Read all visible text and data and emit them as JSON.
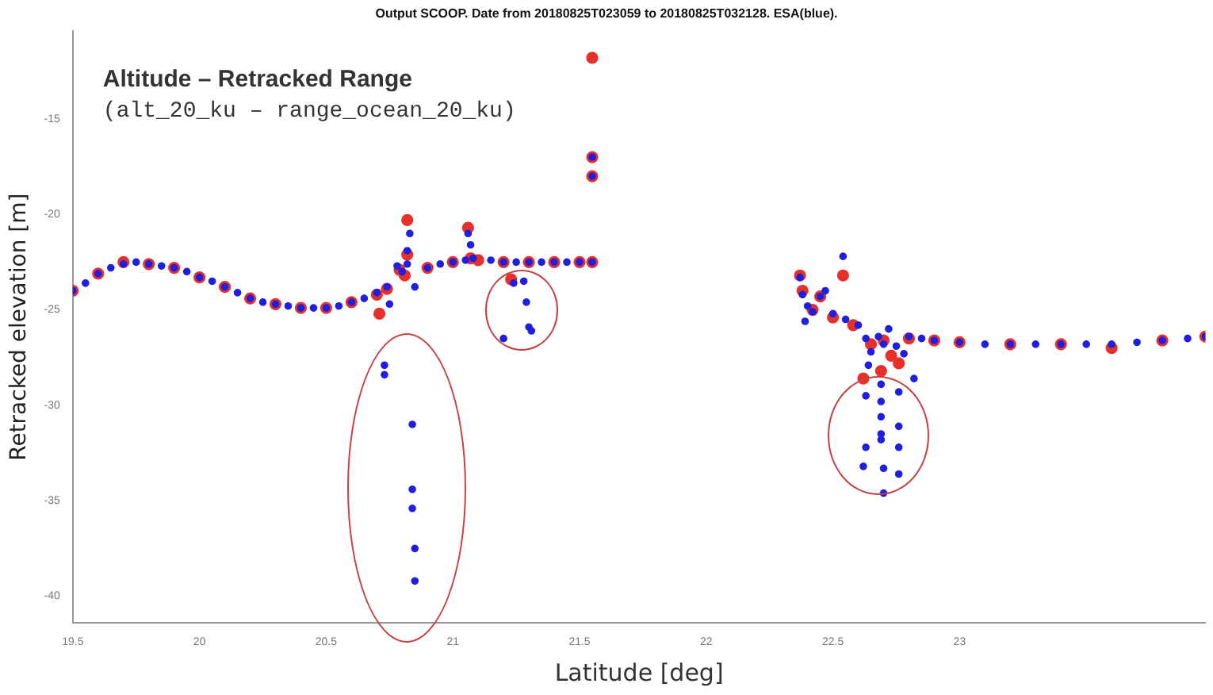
{
  "chart_data": {
    "type": "scatter",
    "title": "Output SCOOP. Date from 20180825T023059 to 20180825T032128. ESA(blue).",
    "xlabel": "Latitude [deg]",
    "ylabel": "Retracked elevation [m]",
    "annotations": [
      "Altitude – Retracked Range",
      "(alt_20_ku – range_ocean_20_ku)"
    ],
    "xlim": [
      19.5,
      23.97
    ],
    "xticks": [
      19.5,
      20,
      20.5,
      21,
      21.5,
      22,
      22.5,
      23
    ],
    "ylim": [
      -41.4,
      -10.4
    ],
    "yticks": [
      -40,
      -35,
      -30,
      -25,
      -20,
      -15
    ],
    "grid": false,
    "legend": false,
    "marker": "circle",
    "series": [
      {
        "color": "#e8302a",
        "x": [
          19.5,
          19.6,
          19.7,
          19.8,
          19.9,
          20.0,
          20.1,
          20.2,
          20.3,
          20.4,
          20.5,
          20.6,
          20.7,
          20.71,
          20.74,
          20.79,
          20.81,
          20.82,
          20.82,
          20.9,
          21.0,
          21.06,
          21.07,
          21.1,
          21.2,
          21.23,
          21.3,
          21.4,
          21.5,
          21.55,
          21.55,
          21.55,
          21.55,
          22.37,
          22.38,
          22.42,
          22.45,
          22.5,
          22.54,
          22.58,
          22.62,
          22.65,
          22.69,
          22.7,
          22.73,
          22.76,
          22.8,
          22.9,
          23.0,
          23.2,
          23.4,
          23.6,
          23.8,
          23.97
        ],
        "values": [
          -24.0,
          -23.1,
          -22.5,
          -22.6,
          -22.8,
          -23.3,
          -23.8,
          -24.4,
          -24.7,
          -24.9,
          -24.9,
          -24.6,
          -24.2,
          -25.2,
          -23.9,
          -22.9,
          -23.2,
          -20.3,
          -22.1,
          -22.8,
          -22.5,
          -20.7,
          -22.3,
          -22.4,
          -22.5,
          -23.4,
          -22.5,
          -22.5,
          -22.5,
          -22.5,
          -11.8,
          -17.0,
          -18.0,
          -23.2,
          -24.0,
          -25.0,
          -24.3,
          -25.4,
          -23.2,
          -25.8,
          -28.6,
          -26.8,
          -28.2,
          -26.6,
          -27.4,
          -27.8,
          -26.5,
          -26.6,
          -26.7,
          -26.8,
          -26.8,
          -27.0,
          -26.6,
          -26.4
        ]
      },
      {
        "color": "#1f1fe0",
        "x": [
          19.5,
          19.55,
          19.6,
          19.65,
          19.7,
          19.75,
          19.8,
          19.85,
          19.9,
          19.95,
          20.0,
          20.05,
          20.1,
          20.15,
          20.2,
          20.25,
          20.3,
          20.35,
          20.4,
          20.45,
          20.5,
          20.55,
          20.6,
          20.65,
          20.7,
          20.74,
          20.75,
          20.73,
          20.73,
          20.84,
          20.84,
          20.84,
          20.85,
          20.85,
          20.78,
          20.8,
          20.82,
          20.82,
          20.83,
          20.85,
          20.9,
          20.95,
          21.0,
          21.05,
          21.06,
          21.07,
          21.08,
          21.15,
          21.2,
          21.24,
          21.28,
          21.29,
          21.3,
          21.31,
          21.2,
          21.25,
          21.3,
          21.35,
          21.4,
          21.45,
          21.5,
          21.55,
          21.55,
          21.55,
          22.37,
          22.38,
          22.4,
          22.42,
          22.39,
          22.45,
          22.47,
          22.5,
          22.54,
          22.55,
          22.6,
          22.63,
          22.65,
          22.68,
          22.7,
          22.72,
          22.75,
          22.78,
          22.8,
          22.85,
          22.9,
          23.0,
          23.1,
          23.2,
          23.3,
          23.4,
          23.5,
          23.6,
          23.7,
          23.8,
          23.9,
          23.97,
          22.64,
          22.69,
          22.76,
          22.82,
          22.63,
          22.69,
          22.69,
          22.69,
          22.69,
          22.76,
          22.76,
          22.63,
          22.62,
          22.7,
          22.76,
          22.7
        ],
        "values": [
          -24.0,
          -23.6,
          -23.1,
          -22.8,
          -22.6,
          -22.5,
          -22.6,
          -22.7,
          -22.8,
          -23.0,
          -23.3,
          -23.5,
          -23.8,
          -24.1,
          -24.4,
          -24.6,
          -24.7,
          -24.8,
          -24.9,
          -24.9,
          -24.9,
          -24.8,
          -24.6,
          -24.4,
          -24.1,
          -23.8,
          -24.7,
          -27.9,
          -28.4,
          -31.0,
          -34.4,
          -35.4,
          -37.5,
          -39.2,
          -22.7,
          -23.0,
          -22.6,
          -21.9,
          -21.0,
          -23.8,
          -22.8,
          -22.6,
          -22.5,
          -22.4,
          -21.0,
          -21.6,
          -22.3,
          -22.4,
          -22.5,
          -23.6,
          -23.5,
          -24.6,
          -25.9,
          -26.1,
          -26.5,
          -22.5,
          -22.5,
          -22.5,
          -22.5,
          -22.5,
          -22.5,
          -22.5,
          -17.0,
          -18.0,
          -23.3,
          -24.2,
          -24.8,
          -25.1,
          -25.6,
          -24.3,
          -24.0,
          -25.2,
          -22.2,
          -25.5,
          -25.8,
          -26.5,
          -27.2,
          -26.4,
          -26.8,
          -26.0,
          -26.9,
          -27.3,
          -26.4,
          -26.5,
          -26.6,
          -26.7,
          -26.8,
          -26.8,
          -26.8,
          -26.8,
          -26.8,
          -26.8,
          -26.7,
          -26.6,
          -26.5,
          -26.4,
          -27.9,
          -28.9,
          -29.3,
          -28.6,
          -29.5,
          -29.8,
          -30.6,
          -31.5,
          -31.8,
          -31.1,
          -32.2,
          -32.2,
          -33.2,
          -33.3,
          -33.6,
          -34.6
        ]
      }
    ]
  }
}
